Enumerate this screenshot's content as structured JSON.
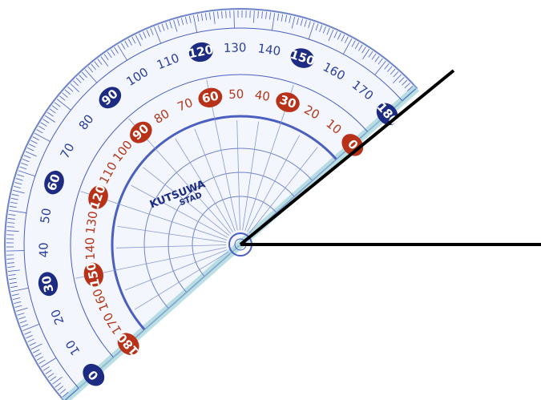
{
  "outer_scale": {
    "labels": [
      0,
      10,
      20,
      30,
      40,
      50,
      60,
      70,
      80,
      90,
      100,
      110,
      120,
      130,
      140,
      150,
      160,
      170,
      180
    ]
  },
  "inner_scale": {
    "labels": [
      180,
      170,
      160,
      150,
      140,
      130,
      120,
      110,
      100,
      90,
      80,
      70,
      60,
      50,
      40,
      30,
      20,
      10,
      0
    ]
  },
  "brand": {
    "name": "KUTSUWA",
    "model": "STAD"
  }
}
